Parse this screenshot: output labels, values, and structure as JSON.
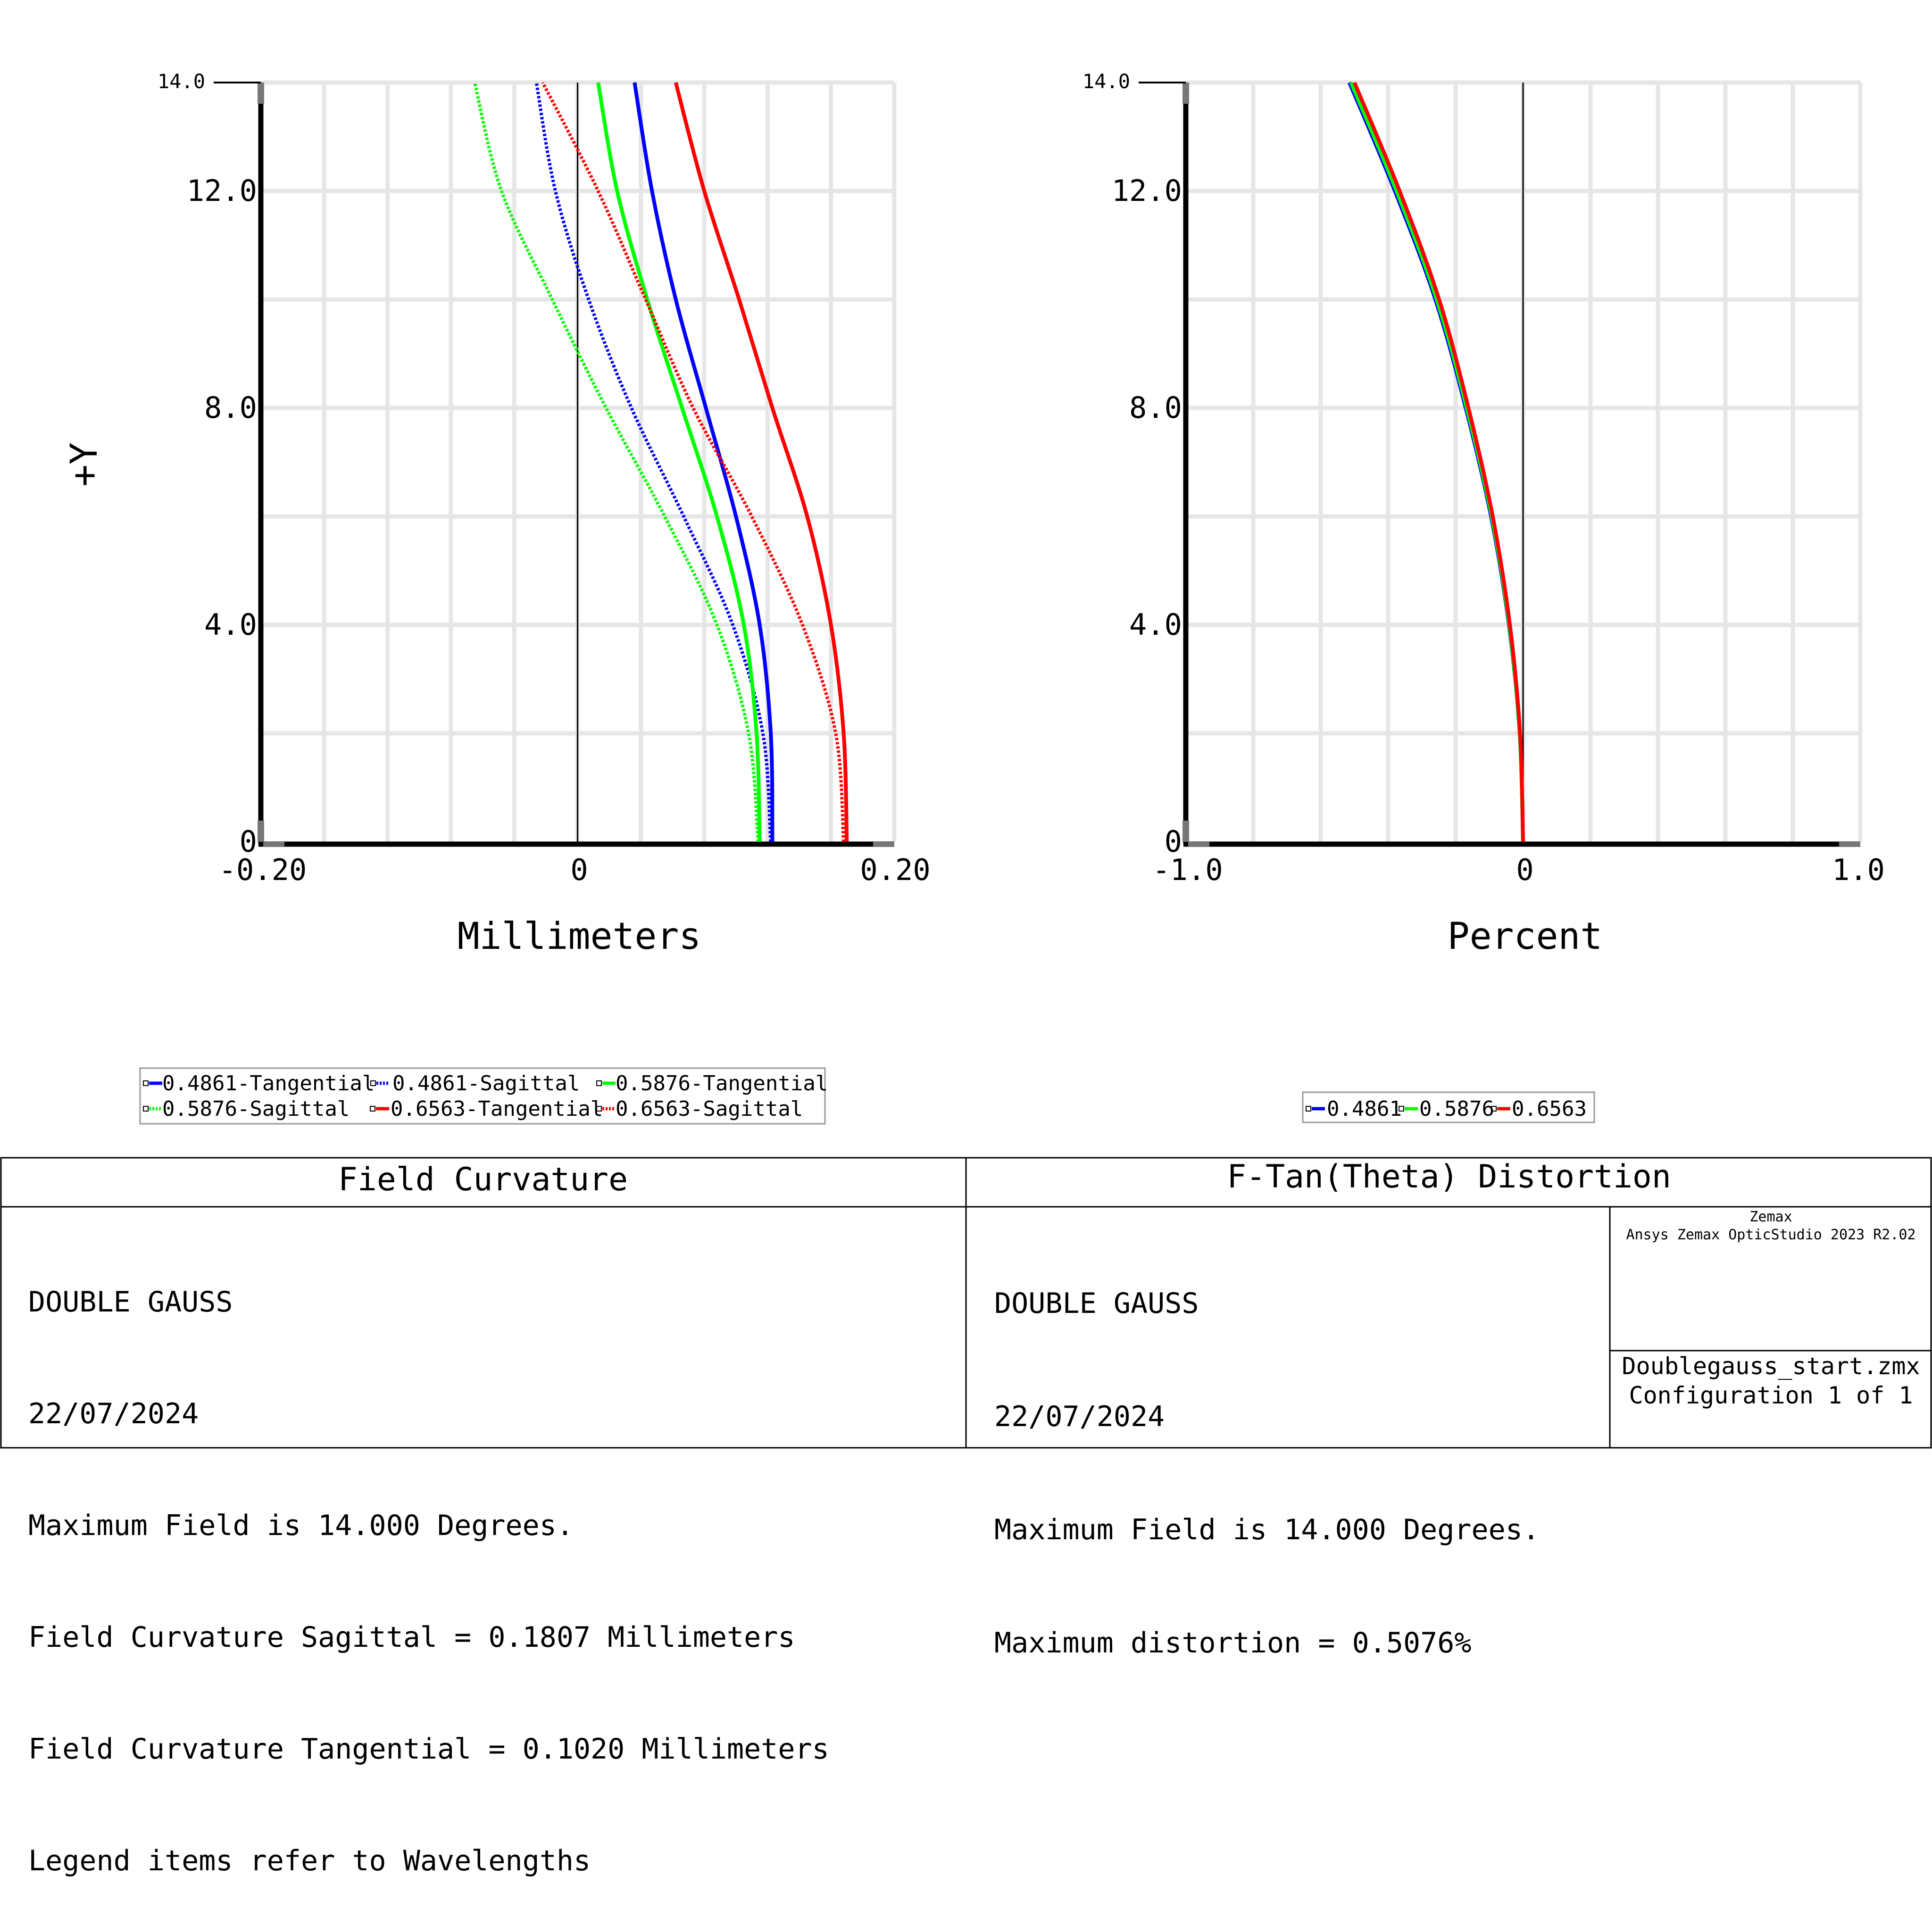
{
  "charts": {
    "field_curvature": {
      "ylabel": "+Y",
      "xlabel": "Millimeters",
      "x_ticks": [
        "-0.20",
        "0",
        "0.20"
      ],
      "y_ticks": [
        "0",
        "4.0",
        "8.0",
        "12.0",
        "14.0"
      ],
      "legend": [
        "0.4861-Tangential",
        "0.4861-Sagittal",
        "0.5876-Tangential",
        "0.5876-Sagittal",
        "0.6563-Tangential",
        "0.6563-Sagittal"
      ]
    },
    "distortion": {
      "xlabel": "Percent",
      "x_ticks": [
        "-1.0",
        "0",
        "1.0"
      ],
      "y_ticks": [
        "0",
        "4.0",
        "8.0",
        "12.0",
        "14.0"
      ],
      "legend": [
        "0.4861",
        "0.5876",
        "0.6563"
      ]
    }
  },
  "chart_data": [
    {
      "type": "line",
      "title": "Field Curvature",
      "xlabel": "Millimeters",
      "ylabel": "+Y",
      "xlim": [
        -0.2,
        0.2
      ],
      "ylim": [
        0,
        14.0
      ],
      "grid": true,
      "legend_position": "bottom-left",
      "series": [
        {
          "name": "0.4861-Tangential",
          "color": "#0000ff",
          "style": "solid",
          "points": [
            [
              0.123,
              0
            ],
            [
              0.122,
              2
            ],
            [
              0.115,
              4
            ],
            [
              0.1,
              6
            ],
            [
              0.081,
              8
            ],
            [
              0.062,
              10
            ],
            [
              0.047,
              12
            ],
            [
              0.036,
              14
            ]
          ]
        },
        {
          "name": "0.4861-Sagittal",
          "color": "#0000ff",
          "style": "dotted",
          "points": [
            [
              0.122,
              0
            ],
            [
              0.117,
              2
            ],
            [
              0.098,
              4
            ],
            [
              0.067,
              6
            ],
            [
              0.034,
              8
            ],
            [
              0.007,
              10
            ],
            [
              -0.014,
              12
            ],
            [
              -0.026,
              14
            ]
          ]
        },
        {
          "name": "0.5876-Tangential",
          "color": "#00ff00",
          "style": "solid",
          "points": [
            [
              0.115,
              0
            ],
            [
              0.113,
              2
            ],
            [
              0.105,
              4
            ],
            [
              0.088,
              6
            ],
            [
              0.066,
              8
            ],
            [
              0.044,
              10
            ],
            [
              0.025,
              12
            ],
            [
              0.013,
              14
            ]
          ]
        },
        {
          "name": "0.5876-Sagittal",
          "color": "#00ff00",
          "style": "dotted",
          "points": [
            [
              0.114,
              0
            ],
            [
              0.108,
              2
            ],
            [
              0.088,
              4
            ],
            [
              0.055,
              6
            ],
            [
              0.018,
              8
            ],
            [
              -0.016,
              10
            ],
            [
              -0.048,
              12
            ],
            [
              -0.065,
              14
            ]
          ]
        },
        {
          "name": "0.6563-Tangential",
          "color": "#ff0000",
          "style": "solid",
          "points": [
            [
              0.17,
              0
            ],
            [
              0.168,
              2
            ],
            [
              0.16,
              4
            ],
            [
              0.145,
              6
            ],
            [
              0.123,
              8
            ],
            [
              0.102,
              10
            ],
            [
              0.08,
              12
            ],
            [
              0.062,
              14
            ]
          ]
        },
        {
          "name": "0.6563-Sagittal",
          "color": "#ff0000",
          "style": "dotted",
          "points": [
            [
              0.168,
              0
            ],
            [
              0.163,
              2
            ],
            [
              0.142,
              4
            ],
            [
              0.11,
              6
            ],
            [
              0.073,
              8
            ],
            [
              0.043,
              10
            ],
            [
              0.013,
              12
            ],
            [
              -0.022,
              14
            ]
          ]
        }
      ]
    },
    {
      "type": "line",
      "title": "F-Tan(Theta) Distortion",
      "xlabel": "Percent",
      "ylabel": "",
      "xlim": [
        -1.0,
        1.0
      ],
      "ylim": [
        0,
        14.0
      ],
      "grid": true,
      "legend_position": "bottom",
      "series": [
        {
          "name": "0.4861",
          "color": "#0000ff",
          "style": "solid",
          "points": [
            [
              0,
              0
            ],
            [
              -0.01,
              2
            ],
            [
              -0.042,
              4
            ],
            [
              -0.095,
              6
            ],
            [
              -0.17,
              8
            ],
            [
              -0.26,
              10
            ],
            [
              -0.38,
              12
            ],
            [
              -0.515,
              14
            ]
          ]
        },
        {
          "name": "0.5876",
          "color": "#00ff00",
          "style": "solid",
          "points": [
            [
              0,
              0
            ],
            [
              -0.01,
              2
            ],
            [
              -0.041,
              4
            ],
            [
              -0.093,
              6
            ],
            [
              -0.167,
              8
            ],
            [
              -0.256,
              10
            ],
            [
              -0.375,
              12
            ],
            [
              -0.51,
              14
            ]
          ]
        },
        {
          "name": "0.6563",
          "color": "#ff0000",
          "style": "solid",
          "points": [
            [
              0,
              0
            ],
            [
              -0.009,
              2
            ],
            [
              -0.039,
              4
            ],
            [
              -0.09,
              6
            ],
            [
              -0.162,
              8
            ],
            [
              -0.249,
              10
            ],
            [
              -0.366,
              12
            ],
            [
              -0.5,
              14
            ]
          ]
        }
      ]
    }
  ],
  "footer": {
    "left_title": "Field Curvature",
    "right_title": "F-Tan(Theta) Distortion",
    "left_lines": [
      "DOUBLE GAUSS",
      "22/07/2024",
      "Maximum Field is 14.000 Degrees.",
      "Field Curvature Sagittal = 0.1807 Millimeters",
      "Field Curvature Tangential = 0.1020 Millimeters",
      "Legend items refer to Wavelengths"
    ],
    "right_lines": [
      "DOUBLE GAUSS",
      "22/07/2024",
      "Maximum Field is 14.000 Degrees.",
      "Maximum distortion = 0.5076%"
    ],
    "brand": "Zemax",
    "product": "Ansys Zemax OpticStudio 2023 R2.02",
    "file": "Doublegauss_start.zmx",
    "config": "Configuration 1 of 1"
  },
  "colors": {
    "blue": "#0000ff",
    "green": "#00ff00",
    "red": "#ff0000",
    "grid": "#e6e6e6"
  }
}
